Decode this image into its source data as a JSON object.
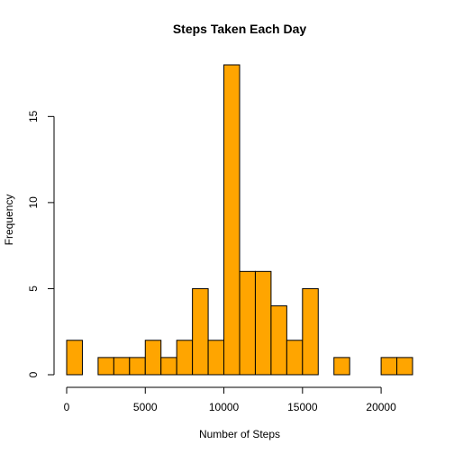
{
  "chart_data": {
    "type": "bar",
    "subtype": "histogram",
    "title": "Steps Taken Each Day",
    "xlabel": "Number of Steps",
    "ylabel": "Frequency",
    "bin_width": 1000,
    "bins": [
      {
        "start": 0,
        "end": 1000,
        "count": 2
      },
      {
        "start": 1000,
        "end": 2000,
        "count": 0
      },
      {
        "start": 2000,
        "end": 3000,
        "count": 1
      },
      {
        "start": 3000,
        "end": 4000,
        "count": 1
      },
      {
        "start": 4000,
        "end": 5000,
        "count": 1
      },
      {
        "start": 5000,
        "end": 6000,
        "count": 2
      },
      {
        "start": 6000,
        "end": 7000,
        "count": 1
      },
      {
        "start": 7000,
        "end": 8000,
        "count": 2
      },
      {
        "start": 8000,
        "end": 9000,
        "count": 5
      },
      {
        "start": 9000,
        "end": 10000,
        "count": 2
      },
      {
        "start": 10000,
        "end": 11000,
        "count": 18
      },
      {
        "start": 11000,
        "end": 12000,
        "count": 6
      },
      {
        "start": 12000,
        "end": 13000,
        "count": 6
      },
      {
        "start": 13000,
        "end": 14000,
        "count": 4
      },
      {
        "start": 14000,
        "end": 15000,
        "count": 2
      },
      {
        "start": 15000,
        "end": 16000,
        "count": 5
      },
      {
        "start": 16000,
        "end": 17000,
        "count": 0
      },
      {
        "start": 17000,
        "end": 18000,
        "count": 1
      },
      {
        "start": 18000,
        "end": 19000,
        "count": 0
      },
      {
        "start": 19000,
        "end": 20000,
        "count": 0
      },
      {
        "start": 20000,
        "end": 21000,
        "count": 1
      },
      {
        "start": 21000,
        "end": 22000,
        "count": 1
      }
    ],
    "x_ticks": [
      0,
      5000,
      10000,
      15000,
      20000
    ],
    "y_ticks": [
      0,
      5,
      10,
      15
    ],
    "xlim": [
      0,
      22000
    ],
    "ylim": [
      0,
      18
    ],
    "bar_color": "#FFA500",
    "bar_border_color": "#000000",
    "grid": false,
    "legend": "none"
  }
}
